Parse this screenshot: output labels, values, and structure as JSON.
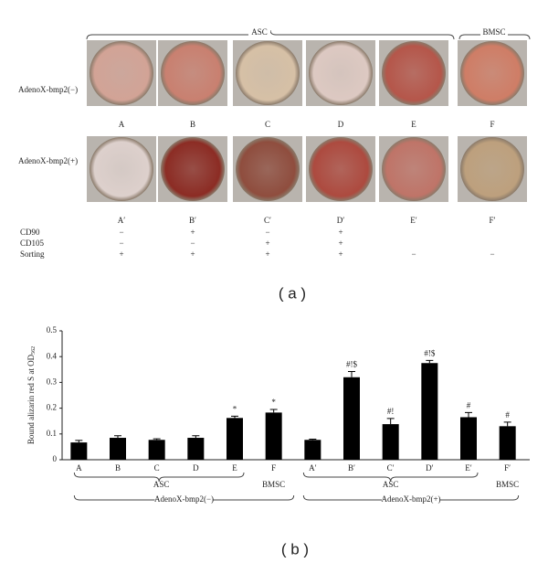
{
  "panel_a": {
    "group_labels": [
      "ASC",
      "BMSC"
    ],
    "row_labels": [
      "AdenoX-bmp2(−)",
      "AdenoX-bmp2(+)"
    ],
    "row1_labels": [
      "A",
      "B",
      "C",
      "D",
      "E",
      "F"
    ],
    "row2_labels": [
      "A′",
      "B′",
      "C′",
      "D′",
      "E′",
      "F′"
    ],
    "markers": [
      {
        "name": "CD90",
        "values": [
          "−",
          "+",
          "−",
          "+",
          null,
          null
        ]
      },
      {
        "name": "CD105",
        "values": [
          "−",
          "−",
          "+",
          "+",
          null,
          null
        ]
      },
      {
        "name": "Sorting",
        "values": [
          "+",
          "+",
          "+",
          "+",
          "−",
          "−"
        ]
      }
    ],
    "caption": "( a )"
  },
  "chart_data": {
    "type": "bar",
    "ylabel": "Bound alizarin red S at OD",
    "ylabel_subscript": "562",
    "categories": [
      "A",
      "B",
      "C",
      "D",
      "E",
      "F",
      "A′",
      "B′",
      "C′",
      "D′",
      "E′",
      "F′"
    ],
    "series": [
      {
        "color": "#000000",
        "values": [
          0.067,
          0.085,
          0.077,
          0.085,
          0.162,
          0.183,
          0.077,
          0.32,
          0.138,
          0.375,
          0.165,
          0.13
        ],
        "errors": [
          0.008,
          0.008,
          0.004,
          0.008,
          0.007,
          0.012,
          0.003,
          0.022,
          0.022,
          0.01,
          0.018,
          0.016
        ],
        "annotations": [
          null,
          null,
          null,
          null,
          "*",
          "*",
          null,
          "#!$",
          "#!",
          "#!$",
          "#",
          "#"
        ]
      }
    ],
    "ylim": [
      0,
      0.5
    ],
    "yticks": [
      0,
      0.1,
      0.2,
      0.3,
      0.4,
      0.5
    ],
    "group_labels": [
      "ASC",
      "BMSC",
      "ASC",
      "BMSC"
    ],
    "condition_labels": [
      "AdenoX-bmp2(−)",
      "AdenoX-bmp2(+)"
    ],
    "caption": "( b )"
  }
}
